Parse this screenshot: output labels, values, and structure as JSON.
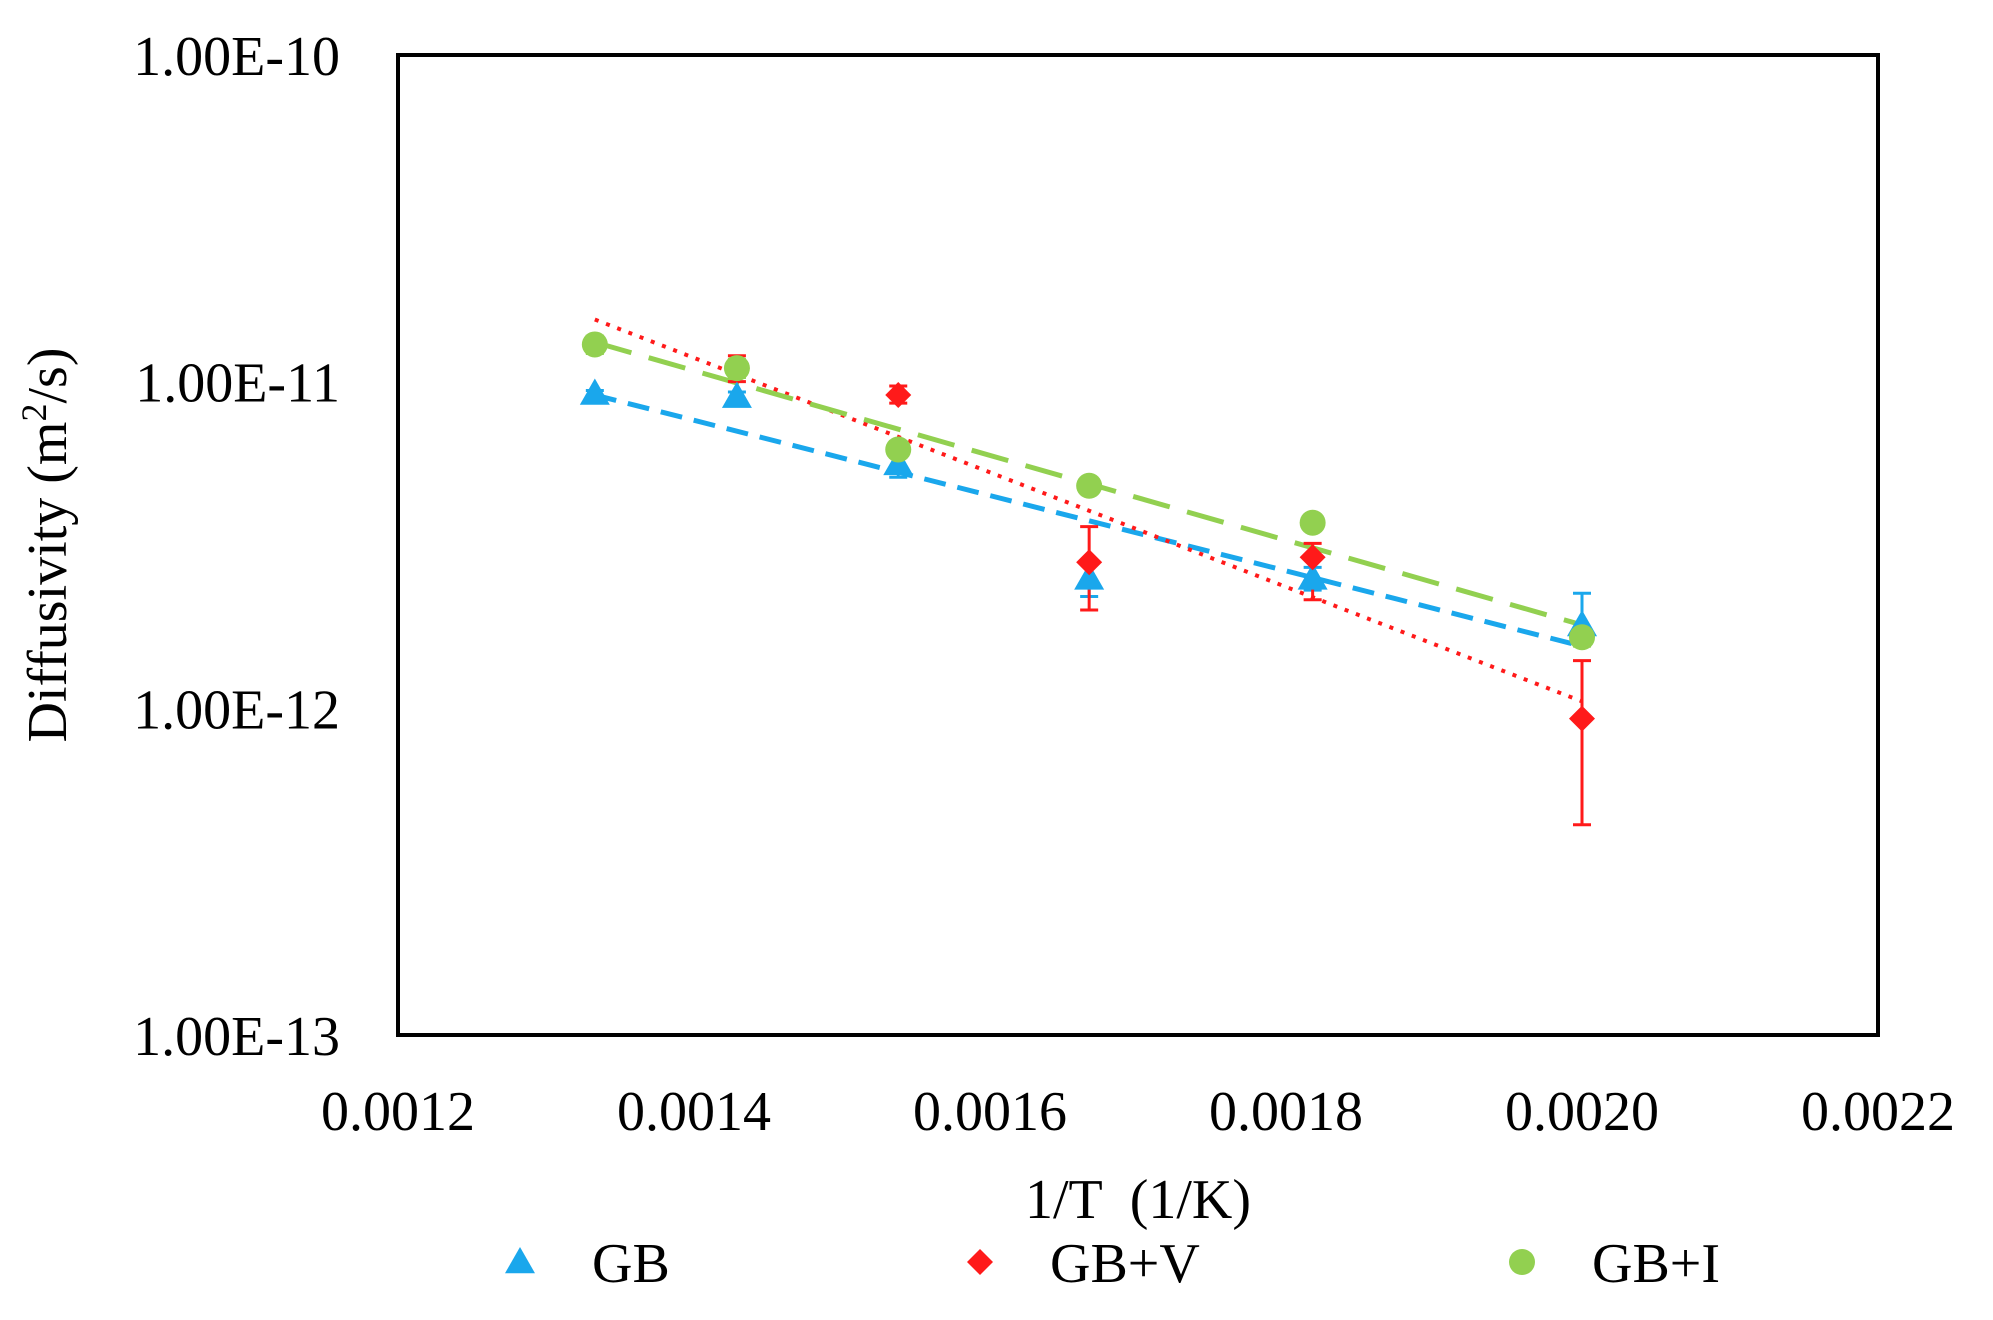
{
  "chart_data": {
    "type": "scatter",
    "title": "",
    "xlabel": "1/T  (1/K)",
    "ylabel": "Diffusivity",
    "ylabel_unit_base": "m",
    "ylabel_unit_sup": "2",
    "ylabel_unit_tail": "/s",
    "ylabel_open": "(",
    "ylabel_close": ")",
    "xlim": [
      0.0012,
      0.0022
    ],
    "ylim": [
      1e-13,
      1e-10
    ],
    "yscale": "log",
    "grid": false,
    "legend_position": "bottom",
    "x_ticks": [
      {
        "value": 0.0012,
        "label": "0.0012"
      },
      {
        "value": 0.0014,
        "label": "0.0014"
      },
      {
        "value": 0.0016,
        "label": "0.0016"
      },
      {
        "value": 0.0018,
        "label": "0.0018"
      },
      {
        "value": 0.002,
        "label": "0.0020"
      },
      {
        "value": 0.0022,
        "label": "0.0022"
      }
    ],
    "y_ticks": [
      {
        "value": 1e-10,
        "label": "1.00E-10"
      },
      {
        "value": 1e-11,
        "label": "1.00E-11"
      },
      {
        "value": 1e-12,
        "label": "1.00E-12"
      },
      {
        "value": 1e-13,
        "label": "1.00E-13"
      }
    ],
    "series": [
      {
        "name": "GB",
        "color": "#1aa7ec",
        "marker": "triangle",
        "trendline": "dashed",
        "x": [
          0.001333,
          0.001429,
          0.001538,
          0.001667,
          0.001818,
          0.002
        ],
        "y": [
          9.2e-12,
          9e-12,
          5.6e-12,
          2.5e-12,
          2.5e-12,
          1.8e-12
        ],
        "err_low": [
          9e-12,
          8.7e-12,
          5.1e-12,
          2.2e-12,
          2.3e-12,
          1.6e-12
        ],
        "err_high": [
          9.4e-12,
          9.3e-12,
          6e-12,
          2.8e-12,
          2.7e-12,
          2.25e-12
        ],
        "fit": [
          [
            0.001333,
            9.1e-12
          ],
          [
            0.002,
            1.55e-12
          ]
        ]
      },
      {
        "name": "GB+V",
        "color": "#ff1a1a",
        "marker": "diamond",
        "trendline": "dotted",
        "x": [
          0.001429,
          0.001538,
          0.001667,
          0.001818,
          0.002
        ],
        "y": [
          1.1e-11,
          9.1e-12,
          2.8e-12,
          2.9e-12,
          9.3e-13
        ],
        "err_low": [
          1e-11,
          8.6e-12,
          2e-12,
          2.15e-12,
          4.4e-13
        ],
        "err_high": [
          1.2e-11,
          9.7e-12,
          3.6e-12,
          3.2e-12,
          1.4e-12
        ],
        "fit": [
          [
            0.001333,
            1.55e-11
          ],
          [
            0.002,
            1.05e-12
          ]
        ]
      },
      {
        "name": "GB+I",
        "color": "#92d050",
        "marker": "circle",
        "trendline": "long-dash",
        "x": [
          0.001333,
          0.001429,
          0.001538,
          0.001667,
          0.001818,
          0.002
        ],
        "y": [
          1.3e-11,
          1.1e-11,
          6.2e-12,
          4.8e-12,
          3.7e-12,
          1.65e-12
        ],
        "err_low": [
          1.22e-11,
          1.03e-11,
          5.9e-12,
          4.6e-12,
          3.5e-12,
          1.55e-12
        ],
        "err_high": [
          1.38e-11,
          1.17e-11,
          6.5e-12,
          5e-12,
          3.9e-12,
          1.75e-12
        ],
        "fit": [
          [
            0.001333,
            1.32e-11
          ],
          [
            0.002,
            1.8e-12
          ]
        ]
      }
    ]
  }
}
